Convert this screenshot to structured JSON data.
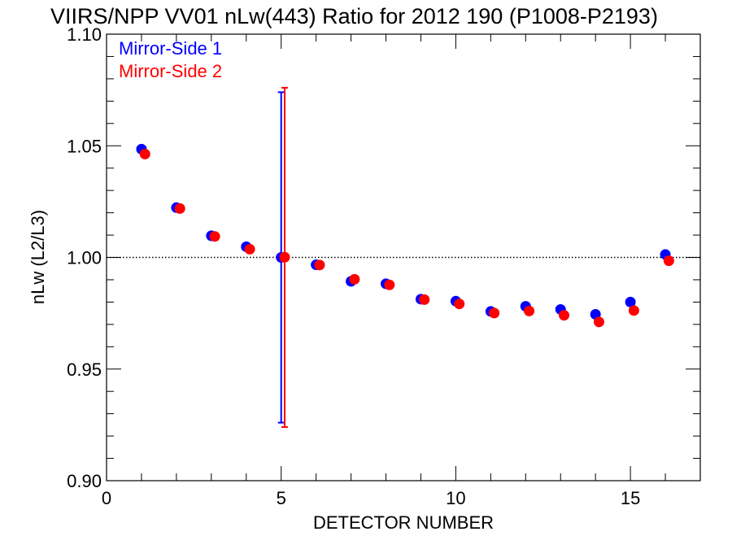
{
  "chart_data": {
    "type": "scatter",
    "title": "VIIRS/NPP VV01 nLw(443) Ratio for 2012 190 (P1008-P2193)",
    "xlabel": "DETECTOR NUMBER",
    "ylabel": "nLw (L2/L3)",
    "xlim": [
      0,
      17
    ],
    "ylim": [
      0.9,
      1.1
    ],
    "x_ticks": [
      0,
      5,
      10,
      15
    ],
    "x_tick_labels": [
      "0",
      "5",
      "10",
      "15"
    ],
    "y_ticks": [
      0.9,
      0.95,
      1.0,
      1.05,
      1.1
    ],
    "y_tick_labels": [
      "0.90",
      "0.95",
      "1.00",
      "1.05",
      "1.10"
    ],
    "reference_line": {
      "y": 1.0,
      "style": "dotted"
    },
    "legend_position": "top-left",
    "series": [
      {
        "name": "Mirror-Side 1",
        "color": "#0000ff",
        "x": [
          1,
          2,
          3,
          4,
          5,
          6,
          7,
          8,
          9,
          10,
          11,
          12,
          13,
          14,
          15,
          16
        ],
        "y": [
          1.0485,
          1.0223,
          1.0097,
          1.0048,
          1.0,
          0.9967,
          0.9893,
          0.9882,
          0.9813,
          0.9804,
          0.9758,
          0.9781,
          0.9767,
          0.9745,
          0.98,
          1.0013
        ],
        "error_bar": {
          "x": 5,
          "low": 0.926,
          "high": 1.074
        }
      },
      {
        "name": "Mirror-Side 2",
        "color": "#ff0000",
        "x": [
          1.1,
          2.1,
          3.1,
          4.1,
          5.1,
          6.1,
          7.1,
          8.1,
          9.1,
          10.1,
          11.1,
          12.1,
          13.1,
          14.1,
          15.1,
          16.1
        ],
        "y": [
          1.0463,
          1.0219,
          1.0094,
          1.0037,
          1.0001,
          0.9966,
          0.9902,
          0.9877,
          0.9811,
          0.9792,
          0.9751,
          0.976,
          0.9741,
          0.9711,
          0.9762,
          0.9985
        ],
        "error_bar": {
          "x": 5.1,
          "low": 0.924,
          "high": 1.076
        }
      }
    ]
  }
}
